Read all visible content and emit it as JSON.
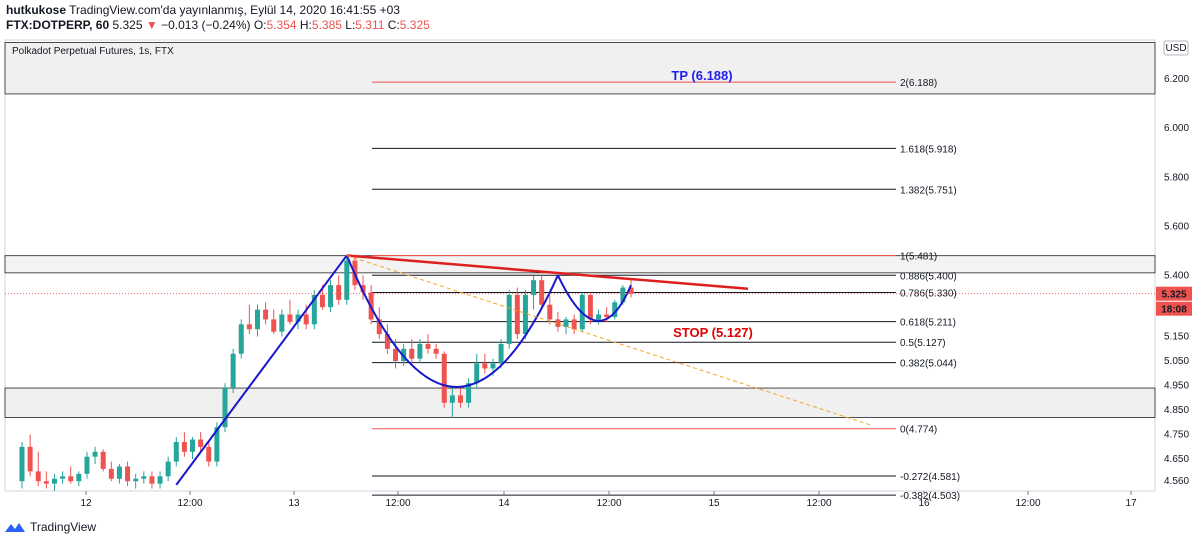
{
  "header": {
    "author": "hutkukose",
    "published": "TradingView.com'da yayınlanmış, Eylül 14, 2020 16:41:55 +03",
    "symbol": "FTX:DOTPERP, 60",
    "last": "5.325",
    "change_arrow": "▼",
    "change": "−0.013 (−0.24%)",
    "o_label": "O:",
    "o_value": "5.354",
    "h_label": "H:",
    "h_value": "5.385",
    "l_label": "L:",
    "l_value": "5.311",
    "c_label": "C:",
    "c_value": "5.325"
  },
  "footer": {
    "brand": "TradingView"
  },
  "colors": {
    "up": "#26a69a",
    "down": "#ef5350",
    "rising_line": "#1717cc",
    "tp_text": "#1e1ef0",
    "stop_text": "#e00000",
    "resistance": "#dd1f1f",
    "fib_red": "#ef5350",
    "dotted_orange": "#f5a623"
  },
  "chart_data": {
    "type": "candlestick",
    "title": "Polkadot Perpetual Futures, 1s, FTX",
    "currency": "USD",
    "y_range": [
      4.52,
      6.36
    ],
    "y_ticks": [
      "6.200",
      "6.000",
      "5.800",
      "5.600",
      "5.400",
      "5.150",
      "5.050",
      "4.950",
      "4.850",
      "4.750",
      "4.650",
      "4.560"
    ],
    "x_ticks": [
      "12",
      "12:00",
      "13",
      "12:00",
      "14",
      "12:00",
      "15",
      "12:00",
      "16",
      "12:00",
      "17"
    ],
    "price_label": "5.325",
    "time_label": "18:08",
    "tp_label": "TP (6.188)",
    "stop_label": "STOP (5.127)",
    "fib_levels": [
      {
        "label": "2(6.188)",
        "value": 6.188,
        "color": "red"
      },
      {
        "label": "1.618(5.918)",
        "value": 5.918,
        "color": "black"
      },
      {
        "label": "1.382(5.751)",
        "value": 5.751,
        "color": "black"
      },
      {
        "label": "1(5.481)",
        "value": 5.481,
        "color": "red"
      },
      {
        "label": "0.886(5.400)",
        "value": 5.4,
        "color": "black"
      },
      {
        "label": "0.786(5.330)",
        "value": 5.33,
        "color": "black"
      },
      {
        "label": "0.618(5.211)",
        "value": 5.211,
        "color": "black"
      },
      {
        "label": "0.5(5.127)",
        "value": 5.127,
        "color": "black"
      },
      {
        "label": "0.382(5.044)",
        "value": 5.044,
        "color": "black"
      },
      {
        "label": "0(4.774)",
        "value": 4.774,
        "color": "red"
      },
      {
        "label": "-0.272(4.581)",
        "value": 4.581,
        "color": "black"
      },
      {
        "label": "-0.382(4.503)",
        "value": 4.503,
        "color": "black"
      }
    ],
    "zones": [
      [
        6.14,
        6.35
      ],
      [
        4.82,
        4.94
      ],
      [
        5.41,
        5.48
      ]
    ],
    "candles": [
      {
        "o": 4.56,
        "h": 4.72,
        "l": 4.53,
        "c": 4.7
      },
      {
        "o": 4.7,
        "h": 4.75,
        "l": 4.58,
        "c": 4.6
      },
      {
        "o": 4.6,
        "h": 4.68,
        "l": 4.54,
        "c": 4.56
      },
      {
        "o": 4.56,
        "h": 4.6,
        "l": 4.53,
        "c": 4.55
      },
      {
        "o": 4.55,
        "h": 4.59,
        "l": 4.52,
        "c": 4.57
      },
      {
        "o": 4.57,
        "h": 4.6,
        "l": 4.55,
        "c": 4.58
      },
      {
        "o": 4.58,
        "h": 4.62,
        "l": 4.55,
        "c": 4.56
      },
      {
        "o": 4.56,
        "h": 4.6,
        "l": 4.54,
        "c": 4.59
      },
      {
        "o": 4.59,
        "h": 4.68,
        "l": 4.57,
        "c": 4.66
      },
      {
        "o": 4.66,
        "h": 4.7,
        "l": 4.63,
        "c": 4.68
      },
      {
        "o": 4.68,
        "h": 4.69,
        "l": 4.6,
        "c": 4.61
      },
      {
        "o": 4.61,
        "h": 4.64,
        "l": 4.56,
        "c": 4.57
      },
      {
        "o": 4.57,
        "h": 4.63,
        "l": 4.55,
        "c": 4.62
      },
      {
        "o": 4.62,
        "h": 4.64,
        "l": 4.54,
        "c": 4.56
      },
      {
        "o": 4.56,
        "h": 4.59,
        "l": 4.53,
        "c": 4.57
      },
      {
        "o": 4.57,
        "h": 4.6,
        "l": 4.55,
        "c": 4.58
      },
      {
        "o": 4.58,
        "h": 4.6,
        "l": 4.53,
        "c": 4.55
      },
      {
        "o": 4.55,
        "h": 4.6,
        "l": 4.53,
        "c": 4.58
      },
      {
        "o": 4.58,
        "h": 4.66,
        "l": 4.56,
        "c": 4.64
      },
      {
        "o": 4.64,
        "h": 4.74,
        "l": 4.62,
        "c": 4.72
      },
      {
        "o": 4.72,
        "h": 4.76,
        "l": 4.66,
        "c": 4.68
      },
      {
        "o": 4.68,
        "h": 4.74,
        "l": 4.65,
        "c": 4.73
      },
      {
        "o": 4.73,
        "h": 4.76,
        "l": 4.68,
        "c": 4.7
      },
      {
        "o": 4.7,
        "h": 4.72,
        "l": 4.62,
        "c": 4.64
      },
      {
        "o": 4.64,
        "h": 4.8,
        "l": 4.62,
        "c": 4.78
      },
      {
        "o": 4.78,
        "h": 4.96,
        "l": 4.76,
        "c": 4.94
      },
      {
        "o": 4.94,
        "h": 5.1,
        "l": 4.92,
        "c": 5.08
      },
      {
        "o": 5.08,
        "h": 5.22,
        "l": 5.06,
        "c": 5.2
      },
      {
        "o": 5.2,
        "h": 5.28,
        "l": 5.16,
        "c": 5.18
      },
      {
        "o": 5.18,
        "h": 5.28,
        "l": 5.15,
        "c": 5.26
      },
      {
        "o": 5.26,
        "h": 5.29,
        "l": 5.2,
        "c": 5.22
      },
      {
        "o": 5.22,
        "h": 5.26,
        "l": 5.16,
        "c": 5.17
      },
      {
        "o": 5.17,
        "h": 5.26,
        "l": 5.15,
        "c": 5.24
      },
      {
        "o": 5.24,
        "h": 5.3,
        "l": 5.2,
        "c": 5.21
      },
      {
        "o": 5.21,
        "h": 5.26,
        "l": 5.18,
        "c": 5.24
      },
      {
        "o": 5.24,
        "h": 5.28,
        "l": 5.18,
        "c": 5.2
      },
      {
        "o": 5.2,
        "h": 5.34,
        "l": 5.18,
        "c": 5.32
      },
      {
        "o": 5.32,
        "h": 5.36,
        "l": 5.26,
        "c": 5.27
      },
      {
        "o": 5.27,
        "h": 5.38,
        "l": 5.25,
        "c": 5.36
      },
      {
        "o": 5.36,
        "h": 5.4,
        "l": 5.28,
        "c": 5.3
      },
      {
        "o": 5.3,
        "h": 5.48,
        "l": 5.28,
        "c": 5.46
      },
      {
        "o": 5.46,
        "h": 5.47,
        "l": 5.34,
        "c": 5.36
      },
      {
        "o": 5.36,
        "h": 5.4,
        "l": 5.3,
        "c": 5.33
      },
      {
        "o": 5.33,
        "h": 5.36,
        "l": 5.2,
        "c": 5.22
      },
      {
        "o": 5.22,
        "h": 5.27,
        "l": 5.14,
        "c": 5.16
      },
      {
        "o": 5.16,
        "h": 5.2,
        "l": 5.08,
        "c": 5.1
      },
      {
        "o": 5.1,
        "h": 5.14,
        "l": 5.02,
        "c": 5.05
      },
      {
        "o": 5.05,
        "h": 5.12,
        "l": 5.03,
        "c": 5.1
      },
      {
        "o": 5.1,
        "h": 5.14,
        "l": 5.04,
        "c": 5.06
      },
      {
        "o": 5.06,
        "h": 5.14,
        "l": 5.04,
        "c": 5.12
      },
      {
        "o": 5.12,
        "h": 5.16,
        "l": 5.08,
        "c": 5.1
      },
      {
        "o": 5.1,
        "h": 5.12,
        "l": 5.06,
        "c": 5.08
      },
      {
        "o": 5.08,
        "h": 5.09,
        "l": 4.86,
        "c": 4.88
      },
      {
        "o": 4.88,
        "h": 4.94,
        "l": 4.82,
        "c": 4.91
      },
      {
        "o": 4.91,
        "h": 4.94,
        "l": 4.86,
        "c": 4.88
      },
      {
        "o": 4.88,
        "h": 4.98,
        "l": 4.86,
        "c": 4.96
      },
      {
        "o": 4.96,
        "h": 5.08,
        "l": 4.94,
        "c": 5.04
      },
      {
        "o": 5.04,
        "h": 5.08,
        "l": 5.0,
        "c": 5.02
      },
      {
        "o": 5.02,
        "h": 5.06,
        "l": 4.99,
        "c": 5.04
      },
      {
        "o": 5.04,
        "h": 5.14,
        "l": 5.02,
        "c": 5.12
      },
      {
        "o": 5.12,
        "h": 5.34,
        "l": 5.1,
        "c": 5.32
      },
      {
        "o": 5.32,
        "h": 5.35,
        "l": 5.14,
        "c": 5.16
      },
      {
        "o": 5.16,
        "h": 5.34,
        "l": 5.14,
        "c": 5.32
      },
      {
        "o": 5.32,
        "h": 5.4,
        "l": 5.26,
        "c": 5.38
      },
      {
        "o": 5.38,
        "h": 5.4,
        "l": 5.26,
        "c": 5.28
      },
      {
        "o": 5.28,
        "h": 5.32,
        "l": 5.2,
        "c": 5.22
      },
      {
        "o": 5.22,
        "h": 5.25,
        "l": 5.17,
        "c": 5.19
      },
      {
        "o": 5.19,
        "h": 5.23,
        "l": 5.16,
        "c": 5.22
      },
      {
        "o": 5.22,
        "h": 5.24,
        "l": 5.16,
        "c": 5.18
      },
      {
        "o": 5.18,
        "h": 5.33,
        "l": 5.17,
        "c": 5.32
      },
      {
        "o": 5.32,
        "h": 5.33,
        "l": 5.2,
        "c": 5.22
      },
      {
        "o": 5.22,
        "h": 5.26,
        "l": 5.2,
        "c": 5.24
      },
      {
        "o": 5.24,
        "h": 5.27,
        "l": 5.21,
        "c": 5.23
      },
      {
        "o": 5.23,
        "h": 5.3,
        "l": 5.22,
        "c": 5.29
      },
      {
        "o": 5.29,
        "h": 5.36,
        "l": 5.28,
        "c": 5.35
      },
      {
        "o": 5.35,
        "h": 5.38,
        "l": 5.31,
        "c": 5.325
      }
    ]
  }
}
